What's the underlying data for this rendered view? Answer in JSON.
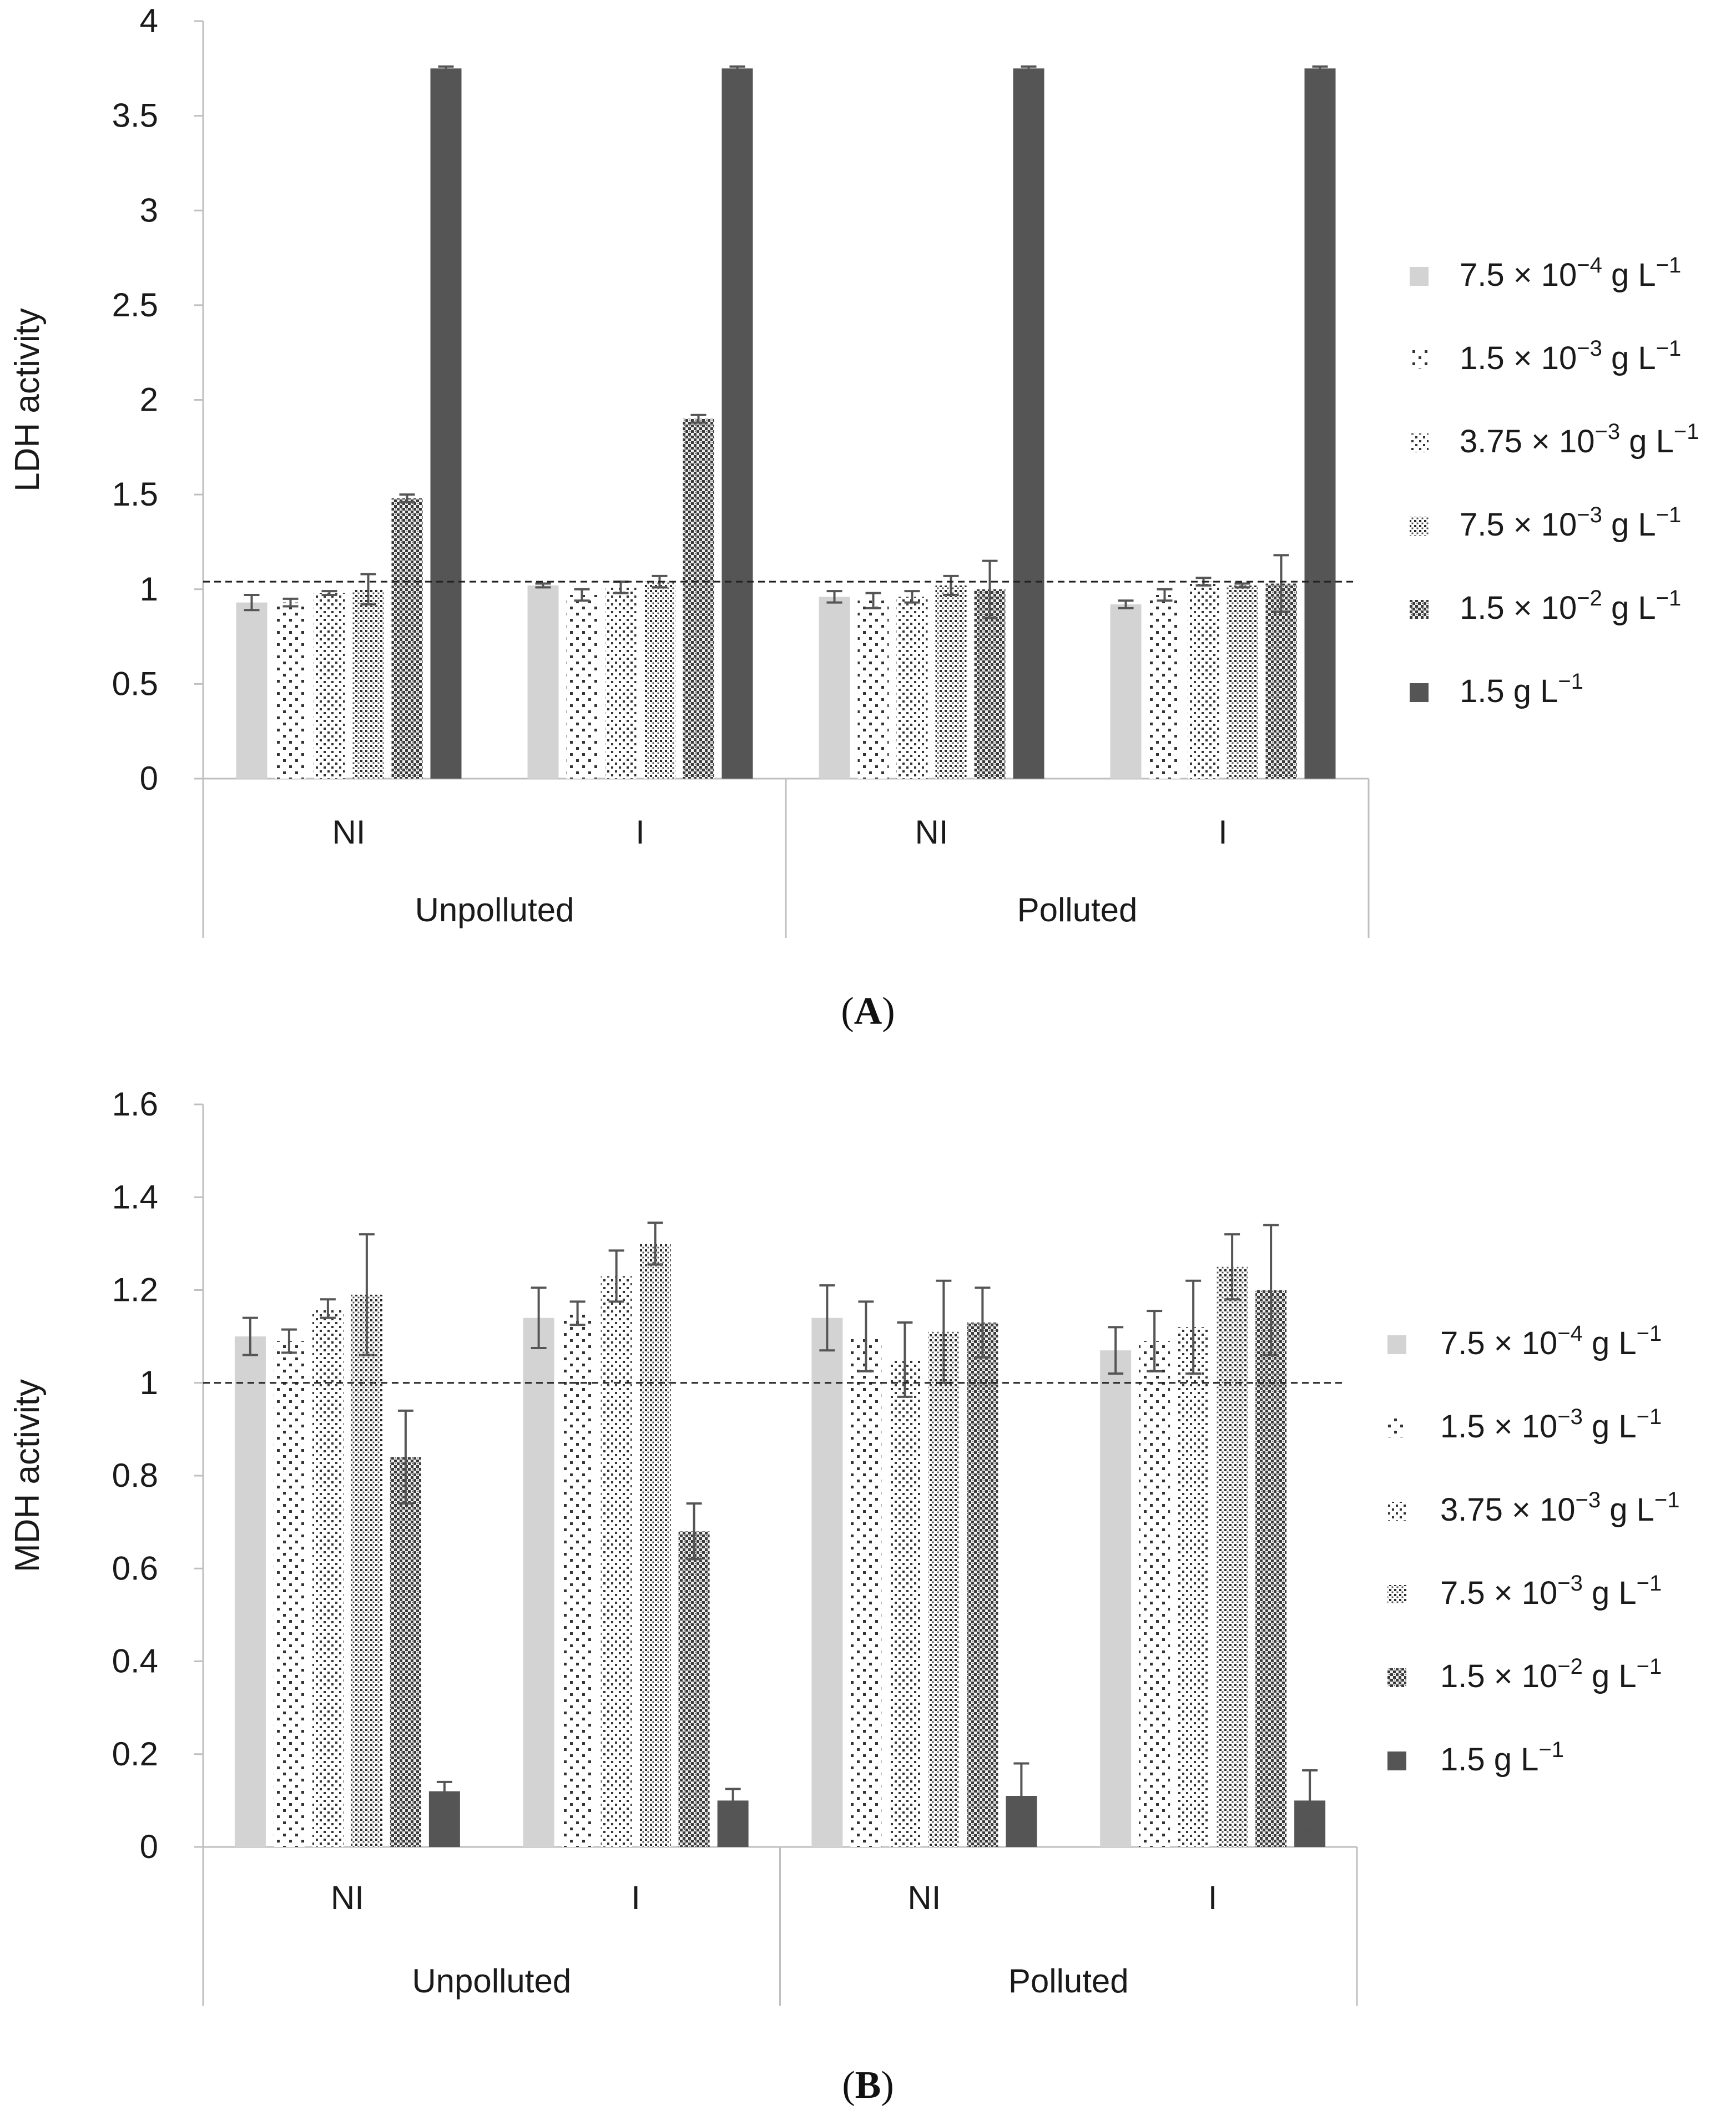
{
  "chart_data": [
    {
      "type": "bar",
      "caption": "A",
      "ylabel": "LDH activity",
      "ylim": [
        0,
        4
      ],
      "yticks": [
        "0",
        "0.5",
        "1",
        "1.5",
        "2",
        "2.5",
        "3",
        "3.5",
        "4"
      ],
      "reference_line": 1.04,
      "groups": [
        {
          "label": "Unpolluted",
          "subgroups": [
            "NI",
            "I"
          ]
        },
        {
          "label": "Polluted",
          "subgroups": [
            "NI",
            "I"
          ]
        }
      ],
      "categories": [
        "NI",
        "I",
        "NI",
        "I"
      ],
      "legend": {
        "entries": [
          {
            "base": "7.5 × 10",
            "exp": "−4",
            "unit": " g L",
            "unit_exp": "−1"
          },
          {
            "base": "1.5 × 10",
            "exp": "−3",
            "unit": " g L",
            "unit_exp": "−1"
          },
          {
            "base": "3.75 × 10",
            "exp": "−3",
            "unit": " g L",
            "unit_exp": "−1"
          },
          {
            "base": "7.5 × 10",
            "exp": "−3",
            "unit": " g L",
            "unit_exp": "−1"
          },
          {
            "base": "1.5 × 10",
            "exp": "−2",
            "unit": " g L",
            "unit_exp": "−1"
          },
          {
            "base": "1.5",
            "exp": "",
            "unit": " g L",
            "unit_exp": "−1"
          }
        ]
      },
      "series": [
        {
          "name": "7.5 × 10−4 g L−1",
          "values": [
            0.93,
            1.02,
            0.96,
            0.92
          ],
          "errors": [
            0.04,
            0.01,
            0.03,
            0.02
          ]
        },
        {
          "name": "1.5 × 10−3 g L−1",
          "values": [
            0.93,
            0.97,
            0.94,
            0.97
          ],
          "errors": [
            0.02,
            0.03,
            0.04,
            0.03
          ]
        },
        {
          "name": "3.75 × 10−3 g L−1",
          "values": [
            0.98,
            1.01,
            0.96,
            1.04
          ],
          "errors": [
            0.01,
            0.03,
            0.03,
            0.02
          ]
        },
        {
          "name": "7.5 × 10−3 g L−1",
          "values": [
            1.0,
            1.04,
            1.02,
            1.02
          ],
          "errors": [
            0.08,
            0.03,
            0.05,
            0.01
          ]
        },
        {
          "name": "1.5 × 10−2 g L−1",
          "values": [
            1.48,
            1.9,
            1.0,
            1.03
          ],
          "errors": [
            0.02,
            0.02,
            0.15,
            0.15
          ]
        },
        {
          "name": "1.5 g L−1",
          "values": [
            3.75,
            3.75,
            3.75,
            3.75
          ],
          "errors": [
            0.01,
            0.01,
            0.01,
            0.01
          ]
        }
      ]
    },
    {
      "type": "bar",
      "caption": "B",
      "ylabel": "MDH activity",
      "ylim": [
        0,
        1.6
      ],
      "yticks": [
        "0",
        "0.2",
        "0.4",
        "0.6",
        "0.8",
        "1",
        "1.2",
        "1.4",
        "1.6"
      ],
      "reference_line": 1.0,
      "groups": [
        {
          "label": "Unpolluted",
          "subgroups": [
            "NI",
            "I"
          ]
        },
        {
          "label": "Polluted",
          "subgroups": [
            "NI",
            "I"
          ]
        }
      ],
      "categories": [
        "NI",
        "I",
        "NI",
        "I"
      ],
      "legend": {
        "entries": [
          {
            "base": "7.5 × 10",
            "exp": "−4",
            "unit": " g L",
            "unit_exp": "−1"
          },
          {
            "base": "1.5 × 10",
            "exp": "−3",
            "unit": " g L",
            "unit_exp": "−1"
          },
          {
            "base": "3.75 × 10",
            "exp": "−3",
            "unit": " g L",
            "unit_exp": "−1"
          },
          {
            "base": "7.5 × 10",
            "exp": "−3",
            "unit": " g L",
            "unit_exp": "−1"
          },
          {
            "base": "1.5 × 10",
            "exp": "−2",
            "unit": " g L",
            "unit_exp": "−1"
          },
          {
            "base": "1.5",
            "exp": "",
            "unit": " g L",
            "unit_exp": "−1"
          }
        ]
      },
      "series": [
        {
          "name": "7.5 × 10−4 g L−1",
          "values": [
            1.1,
            1.14,
            1.14,
            1.07
          ],
          "errors": [
            0.04,
            0.065,
            0.07,
            0.05
          ]
        },
        {
          "name": "1.5 × 10−3 g L−1",
          "values": [
            1.09,
            1.15,
            1.1,
            1.09
          ],
          "errors": [
            0.025,
            0.025,
            0.075,
            0.065
          ]
        },
        {
          "name": "3.75 × 10−3 g L−1",
          "values": [
            1.16,
            1.23,
            1.05,
            1.12
          ],
          "errors": [
            0.02,
            0.055,
            0.08,
            0.1
          ]
        },
        {
          "name": "7.5 × 10−3 g L−1",
          "values": [
            1.19,
            1.3,
            1.11,
            1.25
          ],
          "errors": [
            0.13,
            0.045,
            0.11,
            0.07
          ]
        },
        {
          "name": "1.5 × 10−2 g L−1",
          "values": [
            0.84,
            0.68,
            1.13,
            1.2
          ],
          "errors": [
            0.1,
            0.06,
            0.075,
            0.14
          ]
        },
        {
          "name": "1.5 g L−1",
          "values": [
            0.12,
            0.1,
            0.11,
            0.1
          ],
          "errors": [
            0.02,
            0.025,
            0.07,
            0.065
          ]
        }
      ]
    }
  ]
}
